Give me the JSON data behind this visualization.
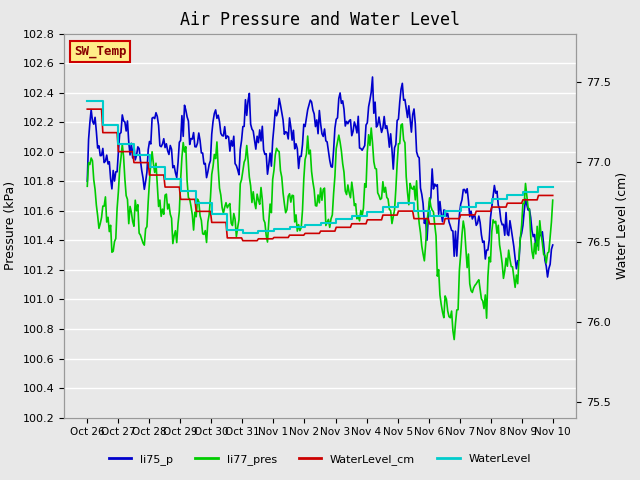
{
  "title": "Air Pressure and Water Level",
  "xlabel": "",
  "ylabel_left": "Pressure (kPa)",
  "ylabel_right": "Water Level (cm)",
  "ylim_left": [
    100.2,
    102.8
  ],
  "ylim_right": [
    75.4,
    77.8
  ],
  "background_color": "#e8e8e8",
  "plot_bg_color": "#e8e8e8",
  "grid_color": "#ffffff",
  "line_colors": {
    "li75_p": "#0000cc",
    "li77_pres": "#00cc00",
    "WaterLevel_cm": "#cc0000",
    "WaterLevel": "#00cccc"
  },
  "annotation_box": {
    "text": "SW_Temp",
    "facecolor": "#ffee88",
    "edgecolor": "#cc0000",
    "textcolor": "#880000"
  },
  "xtick_labels": [
    "Oct 26",
    "Oct 27",
    "Oct 28",
    "Oct 29",
    "Oct 30",
    "Oct 31",
    "Nov 1",
    "Nov 2",
    "Nov 3",
    "Nov 4",
    "Nov 5",
    "Nov 6",
    "Nov 7",
    "Nov 8",
    "Nov 9",
    "Nov 10"
  ],
  "num_points": 360,
  "title_fontsize": 12
}
